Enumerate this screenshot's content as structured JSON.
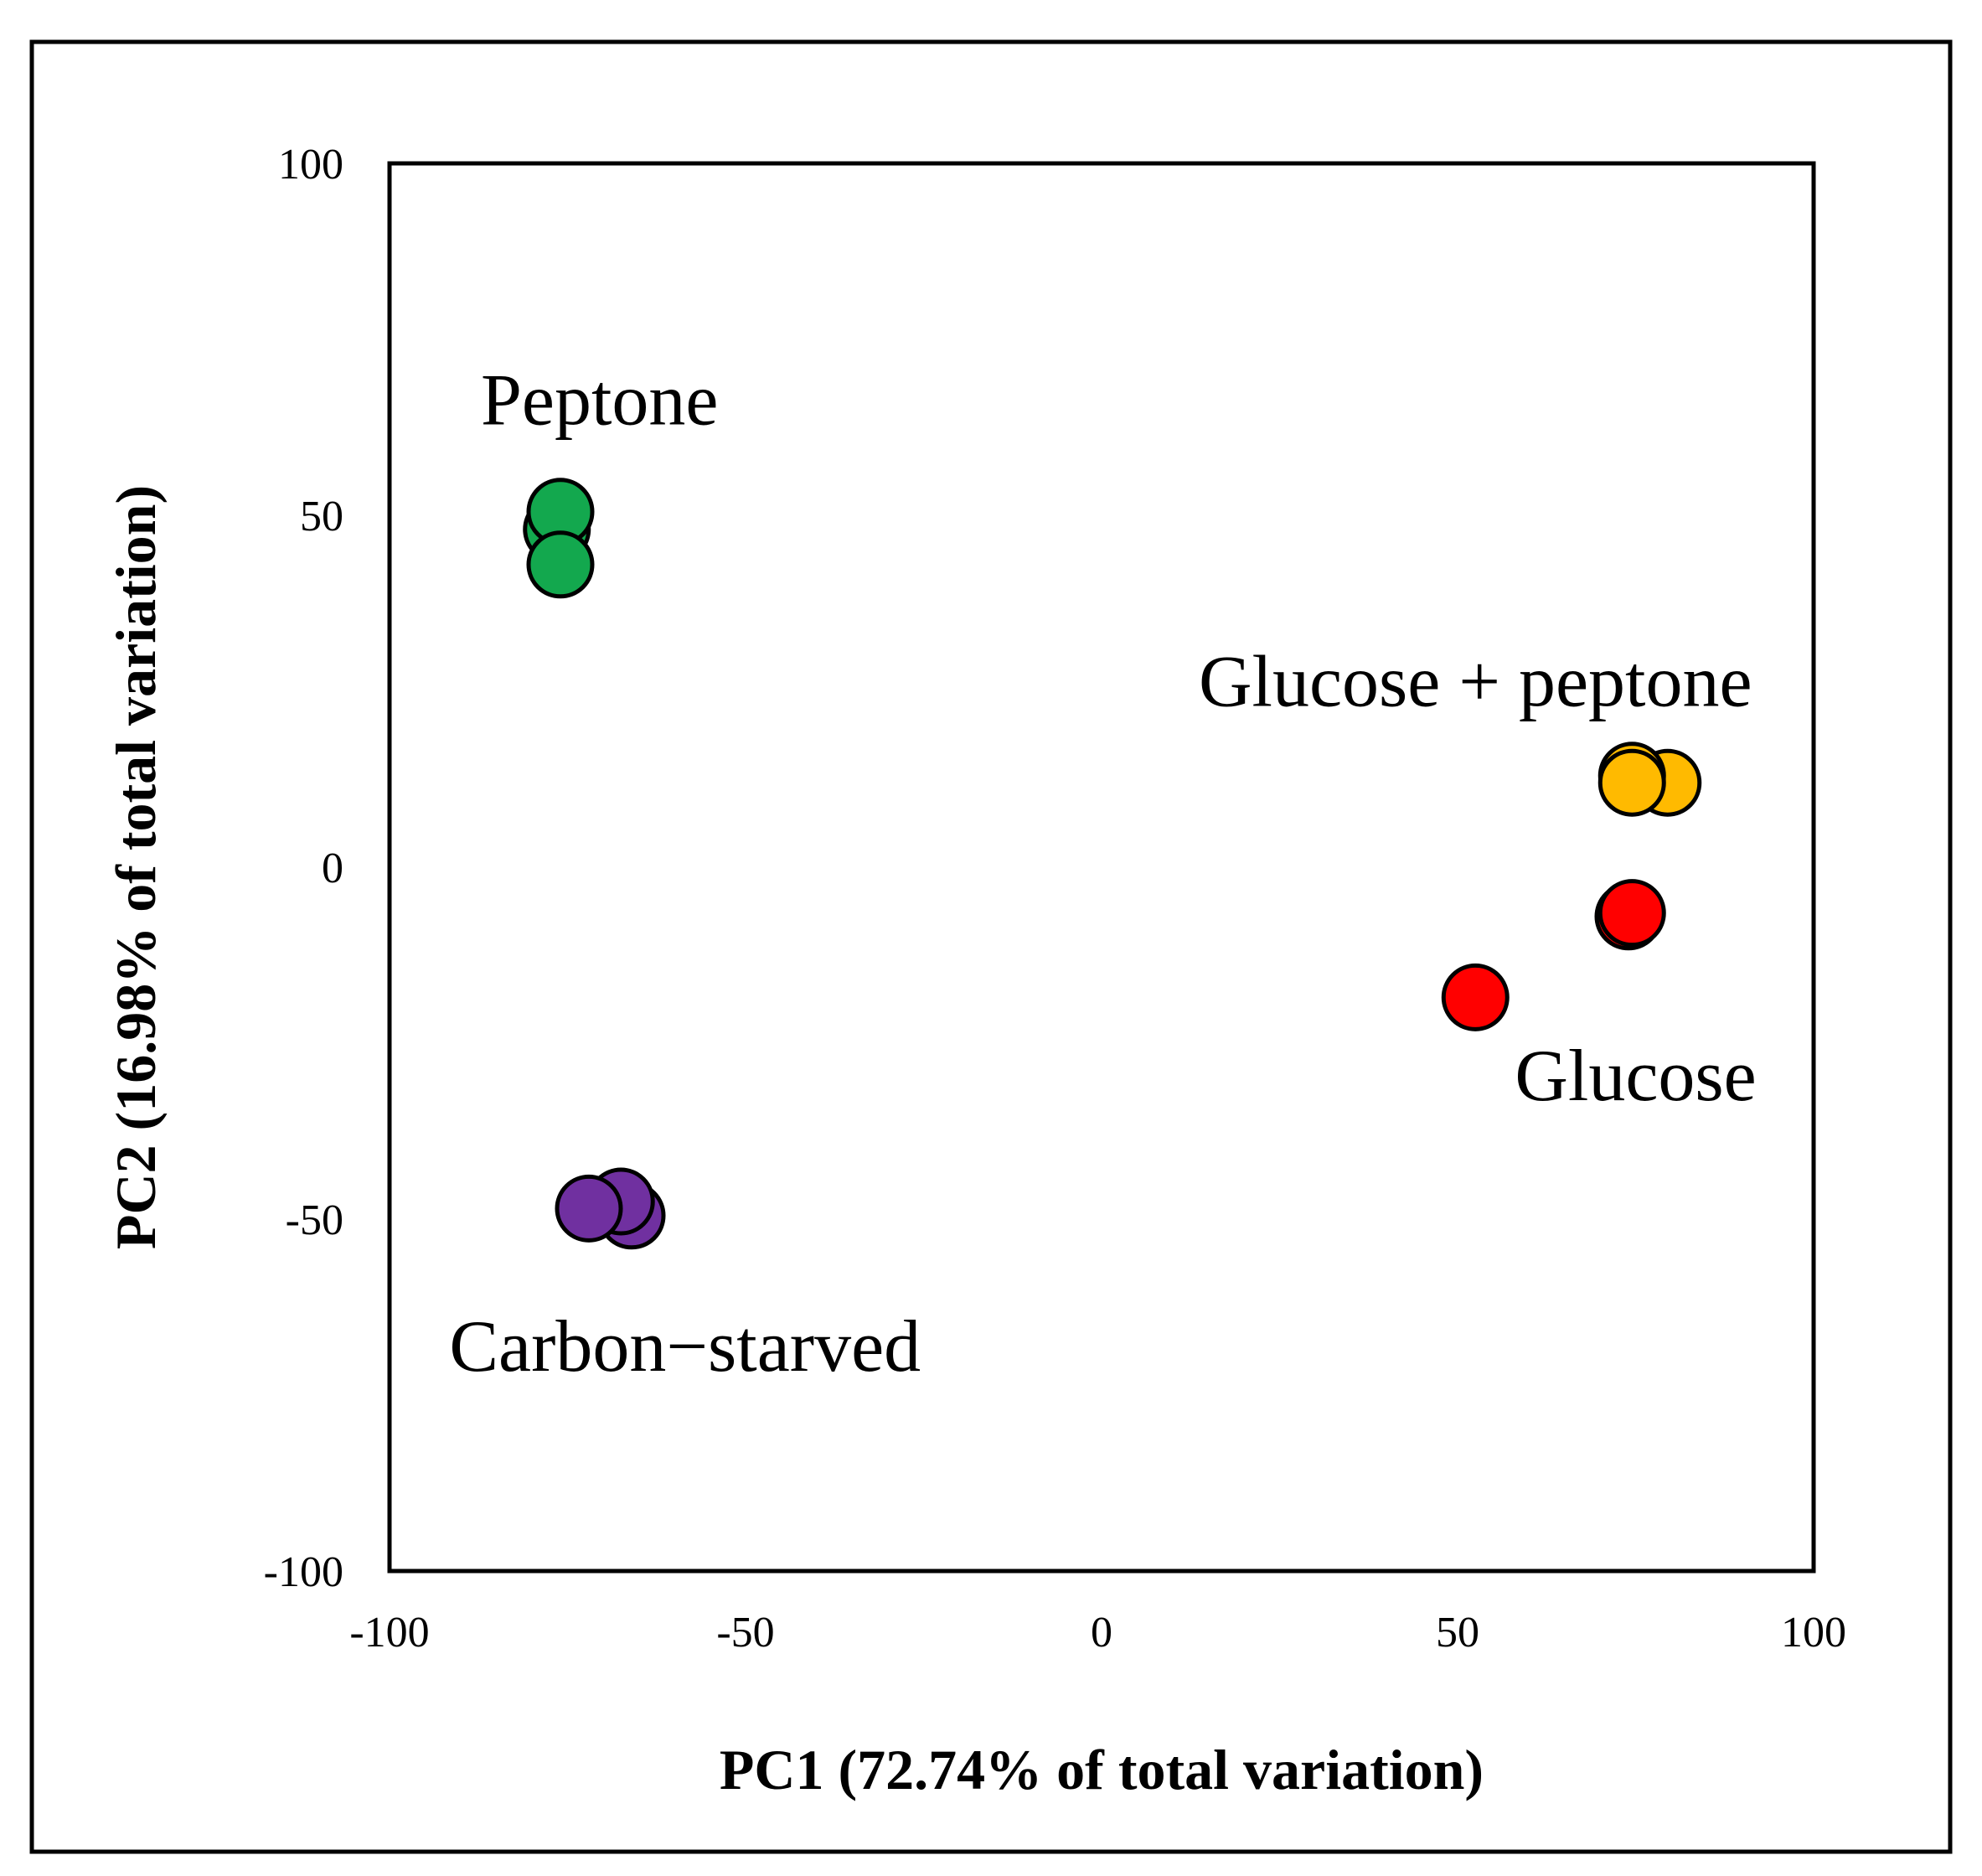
{
  "chart_data": {
    "type": "scatter",
    "xlabel": "PC1 (72.74% of total variation)",
    "ylabel": "PC2 (16.98% of total variation)",
    "xlim": [
      -100,
      100
    ],
    "ylim": [
      -100,
      100
    ],
    "x_ticks": [
      "-100",
      "-50",
      "0",
      "50",
      "100"
    ],
    "y_ticks": [
      "100",
      "50",
      "0",
      "-50",
      "-100"
    ],
    "grid": false,
    "legend": "none",
    "series": [
      {
        "label": "Peptone",
        "color": "#13a84e",
        "points": [
          {
            "x": -76.5,
            "y": 48.0
          },
          {
            "x": -76.0,
            "y": 50.5
          },
          {
            "x": -76.0,
            "y": 43.0
          }
        ]
      },
      {
        "label": "Glucose + peptone",
        "color": "#ffba00",
        "points": [
          {
            "x": 79.5,
            "y": 12.0
          },
          {
            "x": 74.5,
            "y": 13.0
          },
          {
            "x": 74.5,
            "y": 12.0
          }
        ]
      },
      {
        "label": "Glucose",
        "color": "#ff0000",
        "points": [
          {
            "x": 74.0,
            "y": -7.0
          },
          {
            "x": 74.5,
            "y": -6.5
          },
          {
            "x": 52.5,
            "y": -18.5
          }
        ]
      },
      {
        "label": "Carbon−starved",
        "color": "#7030a0",
        "points": [
          {
            "x": -66.0,
            "y": -49.5
          },
          {
            "x": -67.5,
            "y": -47.5
          },
          {
            "x": -72.0,
            "y": -48.5
          }
        ]
      }
    ],
    "labels": [
      {
        "text": "Peptone",
        "x": -70.5,
        "y": 66.5
      },
      {
        "text": "Glucose + peptone",
        "x": 52.5,
        "y": 26.5
      },
      {
        "text": "Glucose",
        "x": 75.0,
        "y": -29.5
      },
      {
        "text": "Carbon−starved",
        "x": -58.5,
        "y": -68.0
      }
    ]
  }
}
